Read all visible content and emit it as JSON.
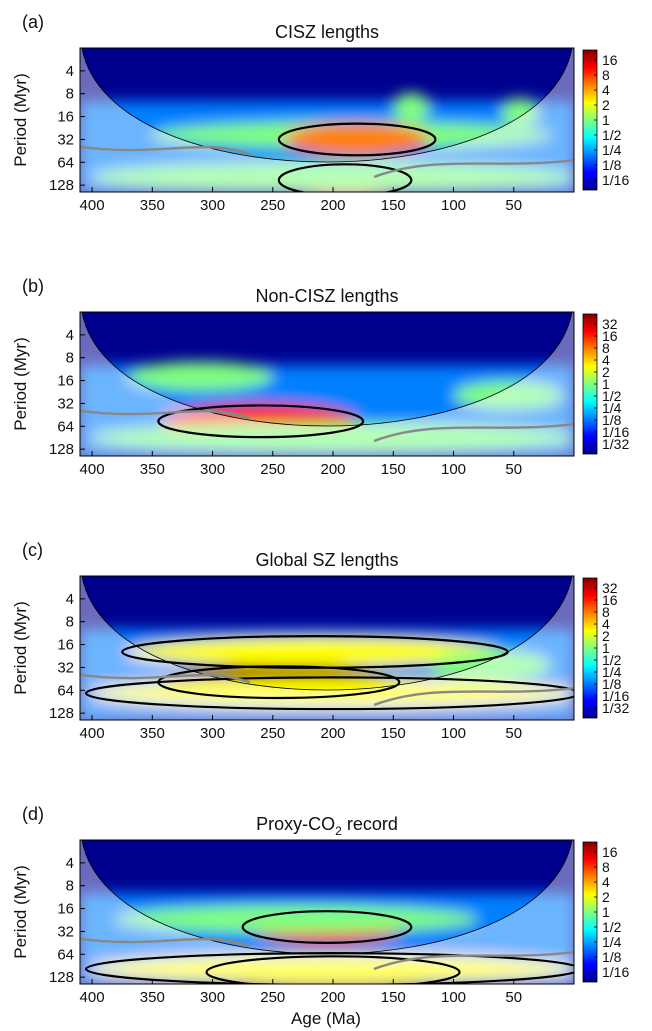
{
  "figure": {
    "xlabel": "Age (Ma)"
  },
  "colormap": [
    "#00008f",
    "#0000ff",
    "#0080ff",
    "#00ffff",
    "#80ff80",
    "#ffff00",
    "#ff8000",
    "#ff0000",
    "#800000"
  ],
  "chart_data": [
    {
      "type": "heatmap",
      "panel_label": "(a)",
      "title": "CISZ lengths",
      "ylabel": "Period (Myr)",
      "xlabel": "",
      "x_ticks": [
        400,
        350,
        300,
        250,
        200,
        150,
        100,
        50
      ],
      "xlim": [
        410,
        0
      ],
      "y_ticks": [
        "4",
        "8",
        "16",
        "32",
        "64",
        "128"
      ],
      "ylim_log2_period": [
        1,
        7.3
      ],
      "colorbar_ticks": [
        "16",
        "8",
        "4",
        "2",
        "1",
        "1/2",
        "1/4",
        "1/8",
        "1/16"
      ],
      "power_bands": [
        {
          "age": [
            350,
            20
          ],
          "period": 28,
          "level": 0.45
        },
        {
          "age": [
            240,
            120
          ],
          "period": 32,
          "level": 0.75
        },
        {
          "age": [
            240,
            140
          ],
          "period": 110,
          "level": 0.9
        },
        {
          "age": [
            400,
            0
          ],
          "period": 100,
          "level": 0.55
        },
        {
          "age": [
            150,
            120
          ],
          "period": 12,
          "level": 0.5
        },
        {
          "age": [
            60,
            30
          ],
          "period": 14,
          "level": 0.5
        }
      ]
    },
    {
      "type": "heatmap",
      "panel_label": "(b)",
      "title": "Non-CISZ lengths",
      "ylabel": "Period (Myr)",
      "xlabel": "",
      "x_ticks": [
        400,
        350,
        300,
        250,
        200,
        150,
        100,
        50
      ],
      "xlim": [
        410,
        0
      ],
      "y_ticks": [
        "4",
        "8",
        "16",
        "32",
        "64",
        "128"
      ],
      "ylim_log2_period": [
        1,
        7.3
      ],
      "colorbar_ticks": [
        "32",
        "16",
        "8",
        "4",
        "2",
        "1",
        "1/2",
        "1/4",
        "1/8",
        "1/16",
        "1/32"
      ],
      "power_bands": [
        {
          "age": [
            340,
            180
          ],
          "period": 55,
          "level": 0.9
        },
        {
          "age": [
            370,
            250
          ],
          "period": 14,
          "level": 0.55
        },
        {
          "age": [
            400,
            0
          ],
          "period": 90,
          "level": 0.55
        },
        {
          "age": [
            100,
            10
          ],
          "period": 25,
          "level": 0.45
        }
      ]
    },
    {
      "type": "heatmap",
      "panel_label": "(c)",
      "title": "Global SZ lengths",
      "ylabel": "Period (Myr)",
      "xlabel": "",
      "x_ticks": [
        400,
        350,
        300,
        250,
        200,
        150,
        100,
        50
      ],
      "xlim": [
        410,
        0
      ],
      "y_ticks": [
        "4",
        "8",
        "16",
        "32",
        "64",
        "128"
      ],
      "ylim_log2_period": [
        1,
        7.3
      ],
      "colorbar_ticks": [
        "32",
        "16",
        "8",
        "4",
        "2",
        "1",
        "1/2",
        "1/4",
        "1/8",
        "1/16",
        "1/32"
      ],
      "power_bands": [
        {
          "age": [
            340,
            150
          ],
          "period": 50,
          "level": 0.95
        },
        {
          "age": [
            370,
            60
          ],
          "period": 20,
          "level": 0.6
        },
        {
          "age": [
            400,
            0
          ],
          "period": 70,
          "level": 0.6
        },
        {
          "age": [
            120,
            20
          ],
          "period": 30,
          "level": 0.55
        }
      ]
    },
    {
      "type": "heatmap",
      "panel_label": "(d)",
      "title": "Proxy-CO",
      "title_subscript": "2",
      "title_suffix": " record",
      "ylabel": "Period (Myr)",
      "xlabel": "Age (Ma)",
      "x_ticks": [
        400,
        350,
        300,
        250,
        200,
        150,
        100,
        50
      ],
      "xlim": [
        410,
        0
      ],
      "y_ticks": [
        "4",
        "8",
        "16",
        "32",
        "64",
        "128"
      ],
      "ylim_log2_period": [
        1,
        7.3
      ],
      "colorbar_ticks": [
        "16",
        "8",
        "4",
        "2",
        "1",
        "1/2",
        "1/4",
        "1/8",
        "1/16"
      ],
      "power_bands": [
        {
          "age": [
            270,
            140
          ],
          "period": 28,
          "level": 0.85
        },
        {
          "age": [
            300,
            100
          ],
          "period": 110,
          "level": 0.95
        },
        {
          "age": [
            400,
            0
          ],
          "period": 100,
          "level": 0.6
        },
        {
          "age": [
            380,
            80
          ],
          "period": 22,
          "level": 0.5
        }
      ]
    }
  ]
}
